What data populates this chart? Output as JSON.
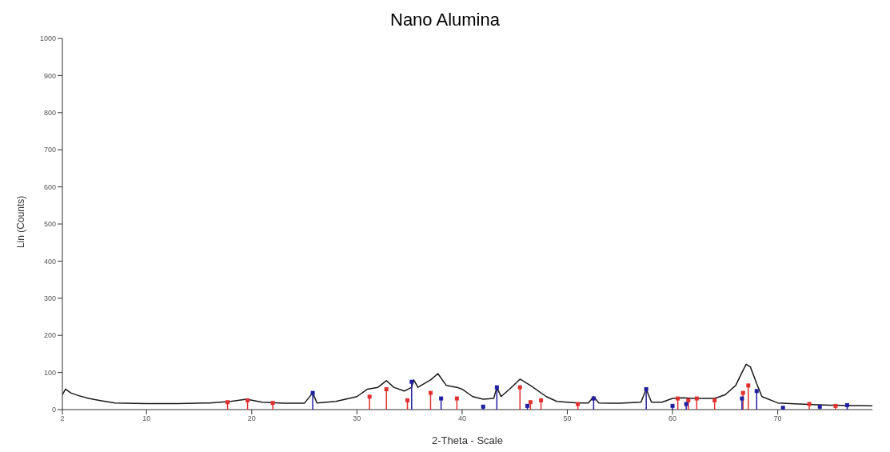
{
  "chart_data": {
    "type": "line",
    "title": "Nano Alumina",
    "xlabel": "2-Theta - Scale",
    "ylabel": "Lin (Counts)",
    "xlim": [
      2,
      79
    ],
    "xticks": [
      2,
      10,
      20,
      30,
      40,
      50,
      60,
      70
    ],
    "ylim": [
      0,
      1000
    ],
    "yticks": [
      0,
      100,
      200,
      300,
      400,
      500,
      600,
      700,
      800,
      900,
      1000
    ],
    "grid": false,
    "legend": false,
    "series": [
      {
        "color": "#1a1a1a",
        "marker": "none",
        "x": [
          2,
          2.3,
          2.8,
          3.5,
          4.5,
          5.5,
          7,
          10,
          13,
          16,
          18,
          19.5,
          21,
          23,
          25,
          25.8,
          26.2,
          28,
          30,
          31,
          32,
          32.8,
          33.5,
          34.5,
          35.2,
          35.4,
          35.8,
          37,
          37.7,
          38.5,
          39.5,
          40,
          41,
          42,
          43,
          43.3,
          43.7,
          44.5,
          45.5,
          46.5,
          48,
          49,
          51,
          52,
          52.5,
          53,
          55,
          57,
          57.5,
          58,
          59,
          60,
          61,
          62,
          64,
          65,
          66,
          66.6,
          67,
          67.4,
          68,
          68.5,
          70,
          72,
          75,
          79
        ],
        "values": [
          40,
          55,
          45,
          38,
          30,
          25,
          18,
          16,
          16,
          18,
          22,
          28,
          20,
          17,
          17,
          45,
          18,
          22,
          35,
          55,
          60,
          78,
          60,
          50,
          60,
          80,
          60,
          80,
          97,
          65,
          60,
          55,
          35,
          28,
          30,
          60,
          35,
          55,
          82,
          65,
          35,
          22,
          18,
          18,
          35,
          18,
          17,
          20,
          55,
          20,
          20,
          30,
          32,
          30,
          30,
          40,
          65,
          100,
          122,
          115,
          70,
          35,
          18,
          15,
          12,
          10
        ]
      },
      {
        "type": "lollipop",
        "color": "#e03030",
        "marker": "square",
        "x": [
          17.7,
          19.6,
          22,
          31.2,
          32.8,
          34.8,
          37,
          39.5,
          45.5,
          46.5,
          47.5,
          51,
          60.5,
          61.5,
          62.3,
          64,
          66.7,
          67.2,
          73,
          75.5
        ],
        "values": [
          20,
          25,
          18,
          35,
          55,
          25,
          45,
          30,
          60,
          20,
          25,
          15,
          30,
          25,
          30,
          25,
          45,
          65,
          15,
          10
        ]
      },
      {
        "type": "lollipop",
        "color": "#2020a0",
        "marker": "square",
        "x": [
          25.8,
          35.2,
          38,
          42,
          43.3,
          46.2,
          52.5,
          57.5,
          60,
          61.3,
          66.6,
          68,
          70.5,
          74,
          76.6
        ],
        "values": [
          45,
          75,
          30,
          8,
          60,
          10,
          30,
          55,
          10,
          15,
          30,
          50,
          5,
          8,
          12
        ]
      }
    ]
  }
}
